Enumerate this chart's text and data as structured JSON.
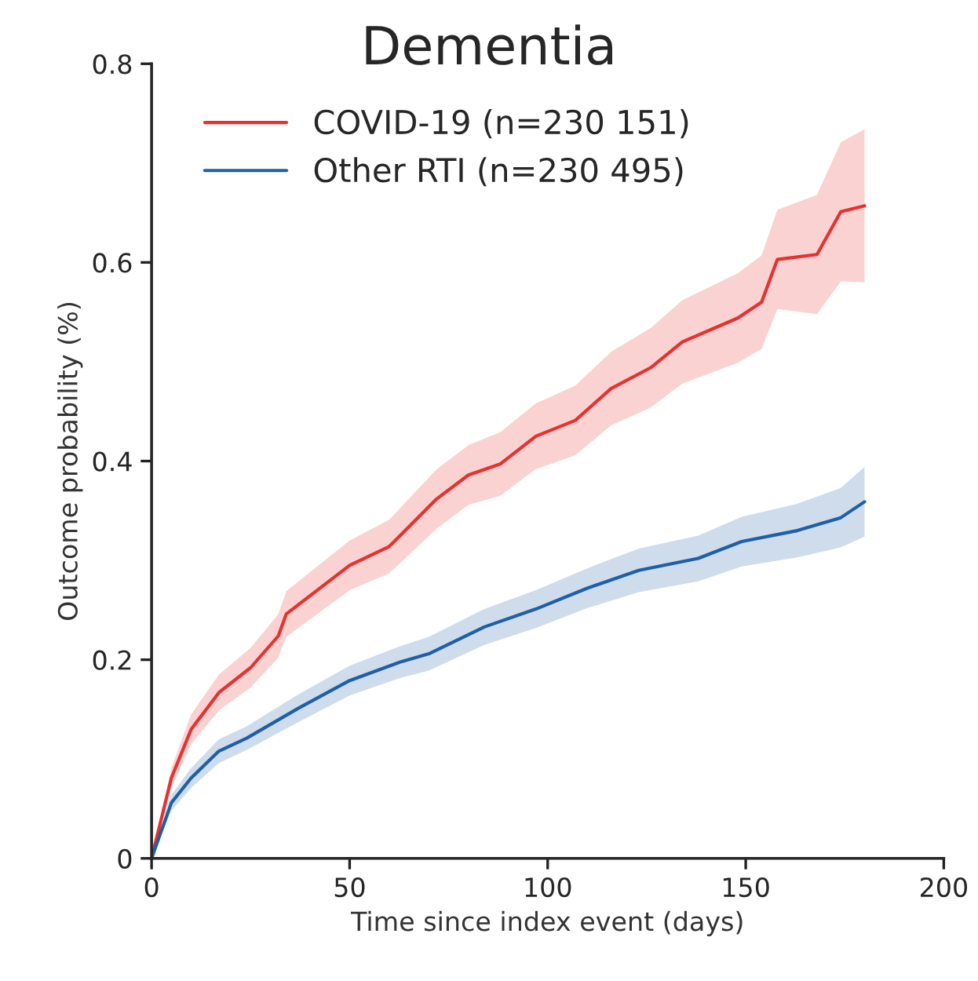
{
  "chart_data": {
    "type": "line",
    "title": "Dementia",
    "xlabel": "Time since index event (days)",
    "ylabel": "Outcome probability (%)",
    "xlim": [
      0,
      200
    ],
    "xticks": [
      0,
      50,
      100,
      150,
      200
    ],
    "ylim": [
      0,
      0.8
    ],
    "yticks": [
      0,
      0.2,
      0.4,
      0.6,
      0.8
    ],
    "grid": false,
    "legend": "top left",
    "line_style": "solid",
    "series": [
      {
        "name": "COVID-19 (n=230 151)",
        "color": "#e8302f",
        "x": [
          0,
          5,
          10,
          17,
          25,
          32,
          34,
          50,
          60,
          72,
          80,
          88,
          97,
          107,
          116,
          126,
          134,
          148,
          154,
          158,
          168,
          174,
          180
        ],
        "values": [
          0,
          0.081,
          0.13,
          0.167,
          0.192,
          0.224,
          0.246,
          0.295,
          0.314,
          0.362,
          0.386,
          0.397,
          0.425,
          0.441,
          0.473,
          0.494,
          0.52,
          0.544,
          0.56,
          0.603,
          0.608,
          0.651,
          0.657
        ],
        "lower": [
          0,
          0.071,
          0.115,
          0.149,
          0.172,
          0.202,
          0.223,
          0.27,
          0.287,
          0.332,
          0.356,
          0.365,
          0.392,
          0.406,
          0.436,
          0.454,
          0.478,
          0.499,
          0.513,
          0.553,
          0.548,
          0.581,
          0.58
        ],
        "upper": [
          0,
          0.091,
          0.145,
          0.185,
          0.212,
          0.246,
          0.269,
          0.32,
          0.341,
          0.392,
          0.416,
          0.429,
          0.458,
          0.476,
          0.51,
          0.534,
          0.562,
          0.589,
          0.607,
          0.653,
          0.668,
          0.721,
          0.734
        ]
      },
      {
        "name": "Other RTI (n=230 495)",
        "color": "#1f5ea8",
        "x": [
          0,
          5,
          10,
          17,
          24,
          37,
          50,
          63,
          70,
          84,
          97,
          110,
          123,
          138,
          149,
          163,
          174,
          180
        ],
        "values": [
          0,
          0.056,
          0.081,
          0.108,
          0.121,
          0.151,
          0.179,
          0.198,
          0.206,
          0.233,
          0.251,
          0.272,
          0.29,
          0.302,
          0.319,
          0.33,
          0.343,
          0.359
        ],
        "lower": [
          0,
          0.048,
          0.071,
          0.096,
          0.109,
          0.137,
          0.164,
          0.182,
          0.189,
          0.215,
          0.232,
          0.252,
          0.268,
          0.279,
          0.294,
          0.303,
          0.313,
          0.324
        ],
        "upper": [
          0,
          0.064,
          0.091,
          0.12,
          0.133,
          0.165,
          0.194,
          0.214,
          0.223,
          0.251,
          0.27,
          0.292,
          0.312,
          0.325,
          0.344,
          0.357,
          0.373,
          0.394
        ]
      }
    ]
  }
}
